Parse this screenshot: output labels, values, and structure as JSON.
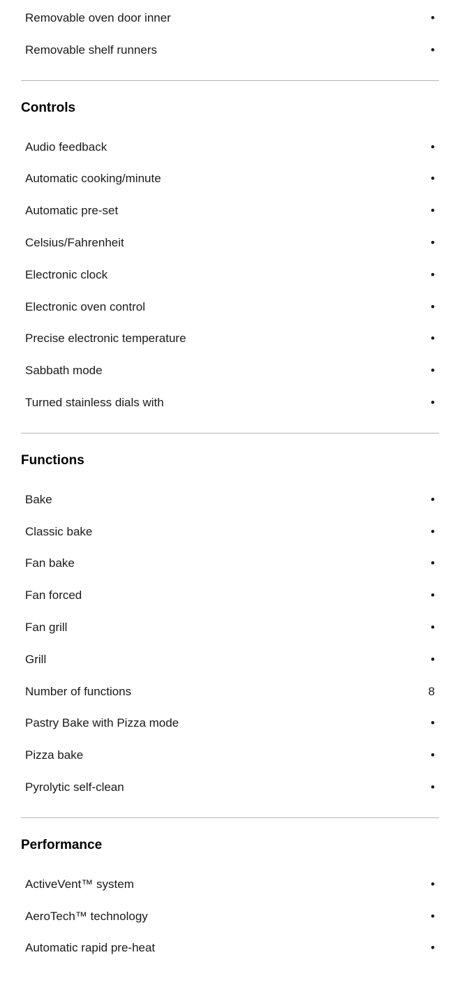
{
  "sections": [
    {
      "title": null,
      "rows": [
        {
          "label": "Removable oven door inner",
          "value": "•"
        },
        {
          "label": "Removable shelf runners",
          "value": "•"
        }
      ]
    },
    {
      "title": "Controls",
      "rows": [
        {
          "label": "Audio feedback",
          "value": "•"
        },
        {
          "label": "Automatic cooking/minute",
          "value": "•"
        },
        {
          "label": "Automatic pre-set",
          "value": "•"
        },
        {
          "label": "Celsius/Fahrenheit",
          "value": "•"
        },
        {
          "label": "Electronic clock",
          "value": "•"
        },
        {
          "label": "Electronic oven control",
          "value": "•"
        },
        {
          "label": "Precise electronic temperature",
          "value": "•"
        },
        {
          "label": "Sabbath mode",
          "value": "•"
        },
        {
          "label": "Turned stainless dials with",
          "value": "•"
        }
      ]
    },
    {
      "title": "Functions",
      "rows": [
        {
          "label": "Bake",
          "value": "•"
        },
        {
          "label": "Classic bake",
          "value": "•"
        },
        {
          "label": "Fan bake",
          "value": "•"
        },
        {
          "label": "Fan forced",
          "value": "•"
        },
        {
          "label": "Fan grill",
          "value": "•"
        },
        {
          "label": "Grill",
          "value": "•"
        },
        {
          "label": "Number of functions",
          "value": "8"
        },
        {
          "label": "Pastry Bake with Pizza mode",
          "value": "•"
        },
        {
          "label": "Pizza bake",
          "value": "•"
        },
        {
          "label": "Pyrolytic self-clean",
          "value": "•"
        }
      ]
    },
    {
      "title": "Performance",
      "rows": [
        {
          "label": "ActiveVent™ system",
          "value": "•"
        },
        {
          "label": "AeroTech™ technology",
          "value": "•"
        },
        {
          "label": "Automatic rapid pre-heat",
          "value": "•"
        }
      ]
    }
  ]
}
